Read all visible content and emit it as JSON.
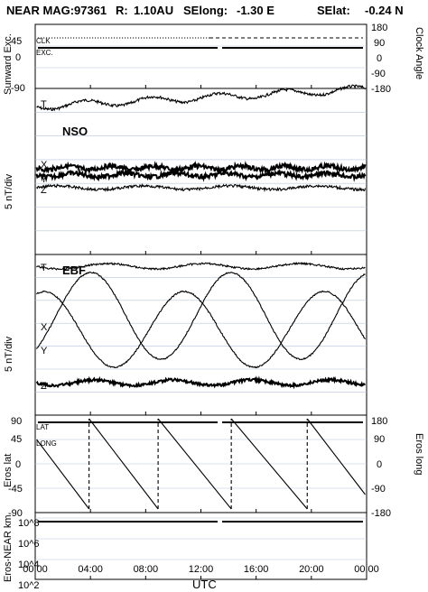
{
  "header": {
    "mission": "NEAR MAG:",
    "day": "97361",
    "r_label": "R:",
    "r_value": "1.10AU",
    "selong_label": "SElong:",
    "selong_value": "-1.30 E",
    "selat_label": "SElat:",
    "selat_value": "-0.24 N"
  },
  "chart_data": [
    {
      "type": "line",
      "panel": "sunward-clock",
      "ylabel_left": "Sunward Exc.",
      "ylabel_right": "Clock Angle",
      "yticks_left": [
        "45",
        "0",
        "-90"
      ],
      "yticks_right": [
        "180",
        "90",
        "0",
        "-90",
        "-180"
      ],
      "series_labels": [
        "CLK",
        "EXC."
      ],
      "series": [
        {
          "name": "CLK",
          "style": "dashed",
          "level": 45
        },
        {
          "name": "EXC.",
          "style": "solid",
          "level": 20
        }
      ]
    },
    {
      "type": "line",
      "panel": "nso",
      "ylabel": "5 nT/div",
      "panel_label": "NSO",
      "series_labels": [
        "T",
        "X",
        "Y",
        "Z"
      ]
    },
    {
      "type": "line",
      "panel": "ebf",
      "ylabel": "5 nT/div",
      "panel_label": "EBF",
      "series_labels": [
        "T",
        "X",
        "Y",
        "Z"
      ]
    },
    {
      "type": "line",
      "panel": "eros-lat-long",
      "ylabel_left": "Eros lat",
      "ylabel_right": "Eros long",
      "yticks_left": [
        "90",
        "45",
        "0",
        "-45",
        "-90"
      ],
      "yticks_right": [
        "180",
        "90",
        "0",
        "-90",
        "-180"
      ],
      "series_labels": [
        "LAT",
        "LONG"
      ],
      "lat_level": 90,
      "long_reset_hours": [
        3.9,
        8.9,
        14.2,
        19.7
      ]
    },
    {
      "type": "line",
      "panel": "eros-near-distance",
      "ylabel": "Eros-NEAR km",
      "yscale": "log",
      "yticks": [
        "10^8",
        "10^6",
        "10^4",
        "10^2"
      ],
      "level_exponent": 8,
      "xticks": [
        "00:00",
        "04:00",
        "08:00",
        "12:00",
        "16:00",
        "20:00",
        "00:00"
      ],
      "xlabel": "UTC"
    }
  ]
}
